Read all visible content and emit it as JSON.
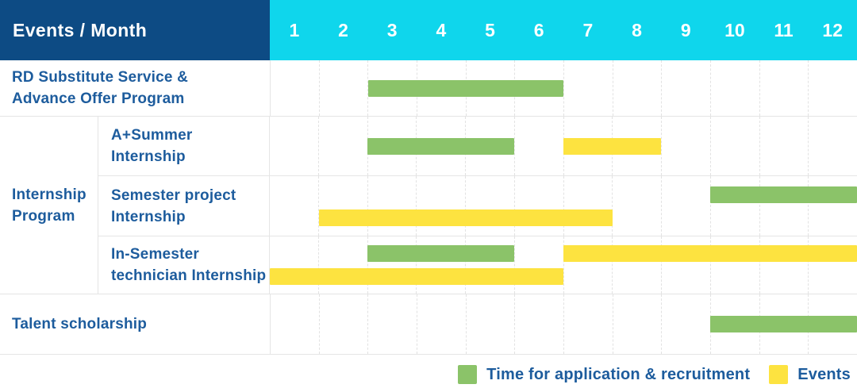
{
  "header": {
    "label": "Events / Month"
  },
  "colors": {
    "header_bg": "#0d4b84",
    "months_bg": "#0fd6ec",
    "header_text": "#ffffff",
    "label_text": "#1d5c9d",
    "grid_line": "#e5e5e5",
    "column_line": "#e2e2e2",
    "background": "#ffffff",
    "recruitment_green": "#8bc369",
    "event_yellow": "#fde340"
  },
  "chart_data": {
    "type": "gantt",
    "title": "Events / Month",
    "x_axis": "Month",
    "x_range": [
      1,
      12
    ],
    "months": [
      "1",
      "2",
      "3",
      "4",
      "5",
      "6",
      "7",
      "8",
      "9",
      "10",
      "11",
      "12"
    ],
    "bar_types": {
      "recruitment": {
        "color": "#8bc369"
      },
      "event": {
        "color": "#fde340"
      }
    },
    "sections": [
      {
        "id": "rd-substitute-service",
        "label_lines": [
          "RD Substitute Service &",
          "Advance Offer Program"
        ],
        "lanes": [
          [
            {
              "type": "recruitment",
              "start_month": 3,
              "end_month": 6
            }
          ]
        ]
      },
      {
        "id": "internship-program",
        "group_label_lines": [
          "Internship",
          "Program"
        ],
        "rows": [
          {
            "id": "a-plus-summer-internship",
            "label_lines": [
              "A+Summer",
              "Internship"
            ],
            "lanes": [
              [
                {
                  "type": "recruitment",
                  "start_month": 3,
                  "end_month": 5
                },
                {
                  "type": "event",
                  "start_month": 7,
                  "end_month": 8
                }
              ]
            ]
          },
          {
            "id": "semester-project-internship",
            "label_lines": [
              "Semester project",
              "Internship"
            ],
            "lanes": [
              [
                {
                  "type": "recruitment",
                  "start_month": 10,
                  "end_month": 12
                }
              ],
              [
                {
                  "type": "event",
                  "start_month": 2,
                  "end_month": 7
                }
              ]
            ]
          },
          {
            "id": "in-semester-technician-internship",
            "label_lines": [
              "In-Semester",
              "technician Internship"
            ],
            "lanes": [
              [
                {
                  "type": "recruitment",
                  "start_month": 3,
                  "end_month": 5
                },
                {
                  "type": "event",
                  "start_month": 7,
                  "end_month": 12
                }
              ],
              [
                {
                  "type": "event",
                  "start_month": 1,
                  "end_month": 6
                }
              ]
            ]
          }
        ]
      },
      {
        "id": "talent-scholarship",
        "label_lines": [
          "Talent scholarship"
        ],
        "lanes": [
          [
            {
              "type": "recruitment",
              "start_month": 10,
              "end_month": 12
            }
          ]
        ]
      }
    ]
  },
  "legend": {
    "items": [
      {
        "type": "recruitment",
        "label": "Time for application & recruitment"
      },
      {
        "type": "event",
        "label": "Events"
      }
    ]
  }
}
